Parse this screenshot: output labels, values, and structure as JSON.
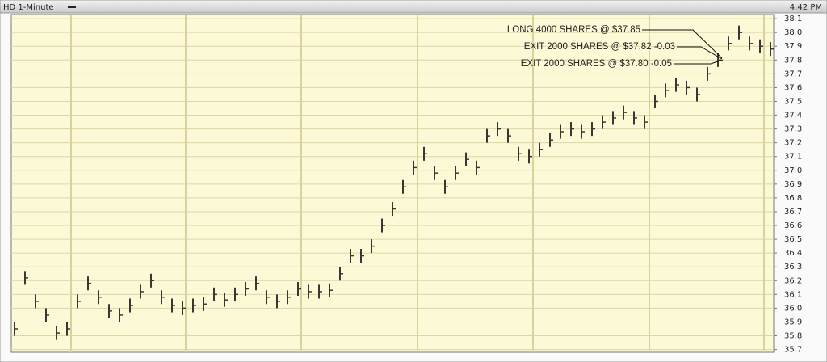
{
  "chart_data": {
    "type": "ohlc",
    "title": "HD 1-Minute",
    "time": "4:42 PM",
    "color": "#3f3434",
    "ylim": [
      35.68,
      38.13
    ],
    "yticks": [
      {
        "value": 35.7,
        "label": "35.7"
      },
      35.8,
      35.9,
      {
        "value": 36,
        "label": "36.0"
      },
      36.1,
      36.2,
      36.3,
      36.4,
      36.5,
      36.6,
      36.7,
      36.8,
      36.9,
      {
        "value": 37,
        "label": "37.0"
      },
      37.1,
      37.2,
      37.3,
      37.4,
      37.5,
      37.6,
      37.7,
      37.8,
      37.9,
      {
        "value": 38,
        "label": "38.0"
      },
      38.1
    ],
    "grid": true,
    "annotations": [
      "LONG 4000 SHARES @ $37.85",
      "EXIT 2000 SHARES @ $37.82 -0.03",
      "EXIT 2000 SHARES @ $37.80 -0.05"
    ],
    "high": [
      35.9,
      36.27,
      36.1,
      36.0,
      35.87,
      35.9,
      36.1,
      36.23,
      36.13,
      36.03,
      36.0,
      36.07,
      36.17,
      36.25,
      36.13,
      36.07,
      36.05,
      36.07,
      36.08,
      36.15,
      36.11,
      36.15,
      36.19,
      36.23,
      36.13,
      36.1,
      36.13,
      36.19,
      36.17,
      36.17,
      36.18,
      36.3,
      36.43,
      36.43,
      36.5,
      36.65,
      36.77,
      36.93,
      37.07,
      37.17,
      37.03,
      36.93,
      37.03,
      37.13,
      37.07,
      37.3,
      37.35,
      37.3,
      37.17,
      37.15,
      37.2,
      37.27,
      37.33,
      37.35,
      37.33,
      37.35,
      37.4,
      37.43,
      37.47,
      37.43,
      37.4,
      37.55,
      37.63,
      37.67,
      37.65,
      37.6,
      37.75,
      37.85,
      37.97,
      38.05,
      37.97,
      37.95,
      37.93
    ],
    "low": [
      35.8,
      36.17,
      36.0,
      35.9,
      35.77,
      35.8,
      36.0,
      36.13,
      36.03,
      35.93,
      35.9,
      35.97,
      36.07,
      36.15,
      36.03,
      35.97,
      35.95,
      35.97,
      35.98,
      36.05,
      36.01,
      36.05,
      36.09,
      36.13,
      36.03,
      36.0,
      36.03,
      36.09,
      36.07,
      36.07,
      36.08,
      36.2,
      36.33,
      36.33,
      36.4,
      36.55,
      36.67,
      36.83,
      36.97,
      37.07,
      36.93,
      36.83,
      36.93,
      37.03,
      36.97,
      37.2,
      37.25,
      37.2,
      37.07,
      37.05,
      37.1,
      37.17,
      37.23,
      37.25,
      37.23,
      37.25,
      37.3,
      37.33,
      37.37,
      37.33,
      37.3,
      37.45,
      37.53,
      37.57,
      37.55,
      37.5,
      37.65,
      37.75,
      37.87,
      37.95,
      37.87,
      37.85,
      37.83
    ],
    "close": [
      35.85,
      36.22,
      36.05,
      35.95,
      35.82,
      35.85,
      36.05,
      36.18,
      36.08,
      35.98,
      35.95,
      36.02,
      36.12,
      36.2,
      36.08,
      36.02,
      36.0,
      36.02,
      36.03,
      36.1,
      36.06,
      36.1,
      36.14,
      36.18,
      36.08,
      36.05,
      36.08,
      36.14,
      36.12,
      36.12,
      36.13,
      36.25,
      36.38,
      36.38,
      36.45,
      36.6,
      36.72,
      36.88,
      37.02,
      37.12,
      36.98,
      36.88,
      36.98,
      37.08,
      37.02,
      37.25,
      37.3,
      37.25,
      37.12,
      37.1,
      37.15,
      37.22,
      37.28,
      37.3,
      37.28,
      37.3,
      37.35,
      37.38,
      37.42,
      37.38,
      37.35,
      37.5,
      37.58,
      37.62,
      37.6,
      37.55,
      37.7,
      37.8,
      37.92,
      38.0,
      37.92,
      37.9,
      37.88
    ]
  }
}
